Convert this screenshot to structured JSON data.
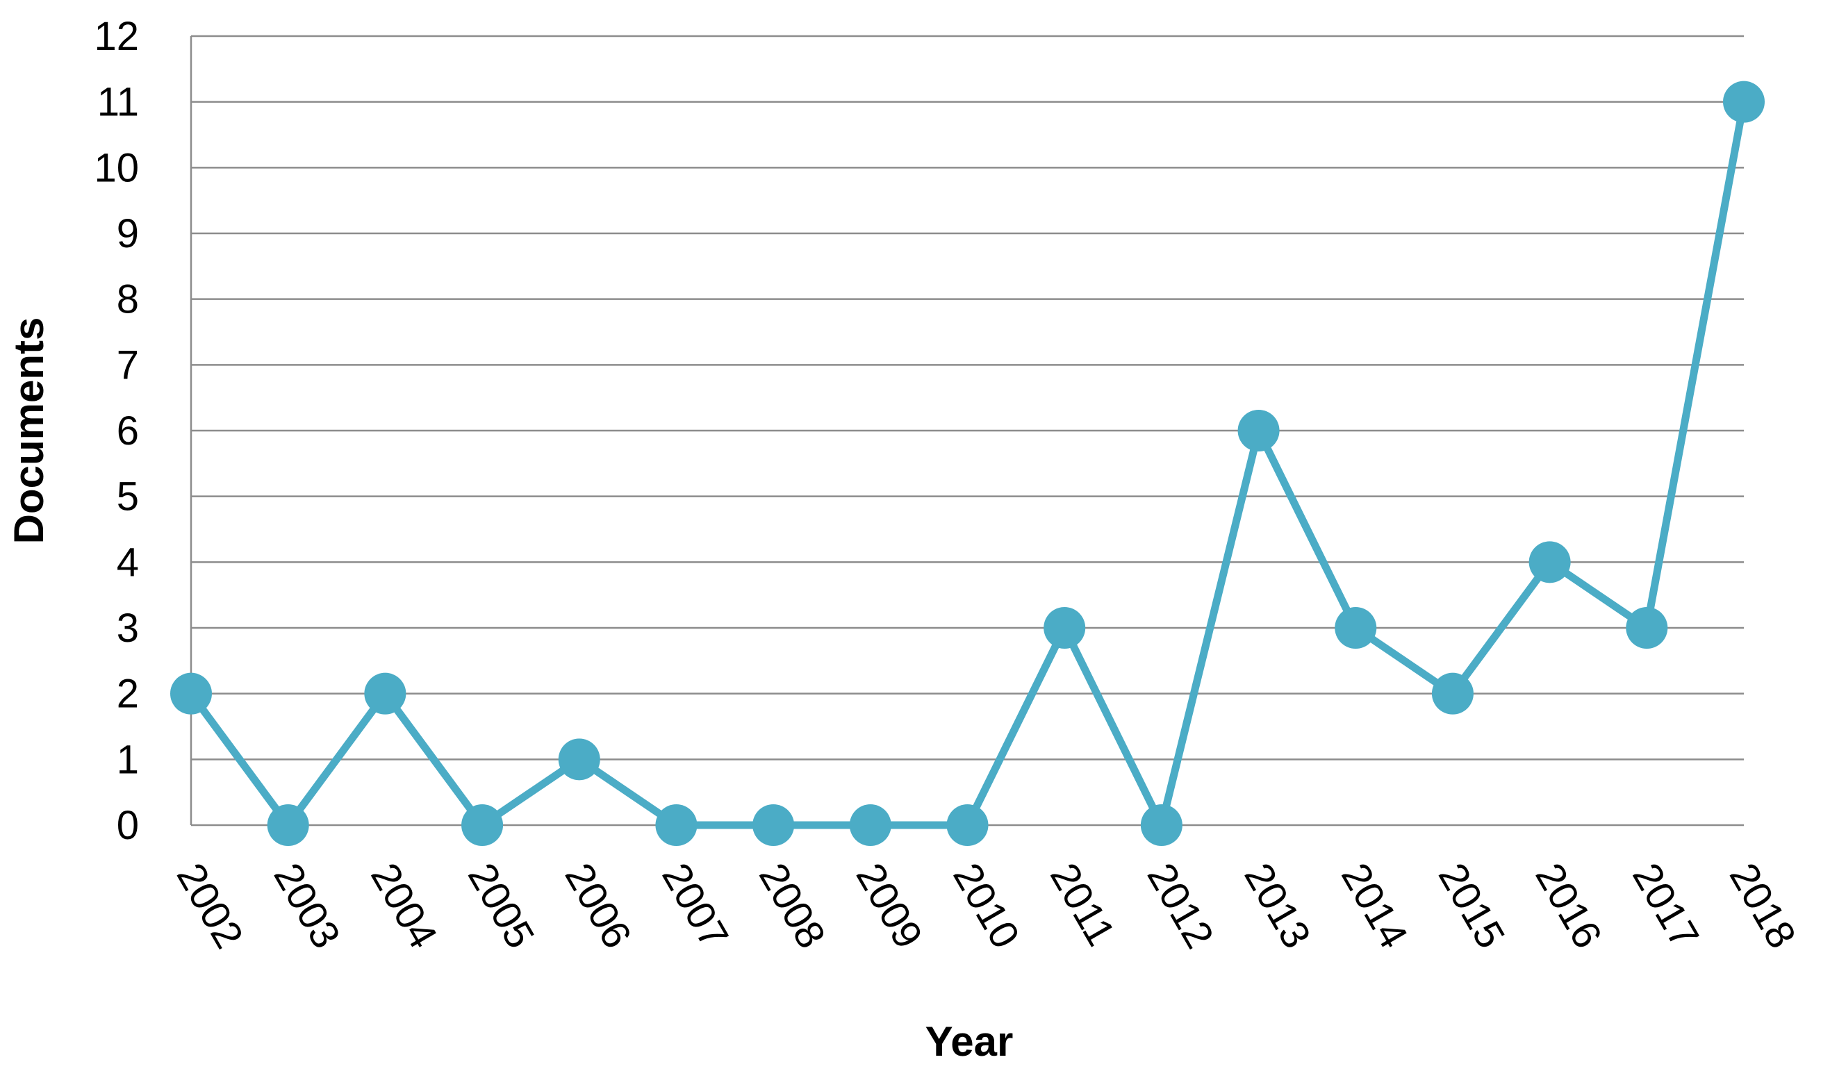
{
  "chart_data": {
    "type": "line",
    "title": "",
    "xlabel": "Year",
    "ylabel": "Documents",
    "categories": [
      "2002",
      "2003",
      "2004",
      "2005",
      "2006",
      "2007",
      "2008",
      "2009",
      "2010",
      "2011",
      "2012",
      "2013",
      "2014",
      "2015",
      "2016",
      "2017",
      "2018"
    ],
    "series": [
      {
        "values": [
          2,
          0,
          2,
          0,
          1,
          0,
          0,
          0,
          0,
          3,
          0,
          6,
          3,
          2,
          4,
          3,
          11
        ]
      }
    ],
    "ylim": [
      0,
      12
    ],
    "yticks": [
      0,
      1,
      2,
      3,
      4,
      5,
      6,
      7,
      8,
      9,
      10,
      11,
      12
    ],
    "grid": true,
    "legend": "none",
    "color": "#4bacc6"
  }
}
